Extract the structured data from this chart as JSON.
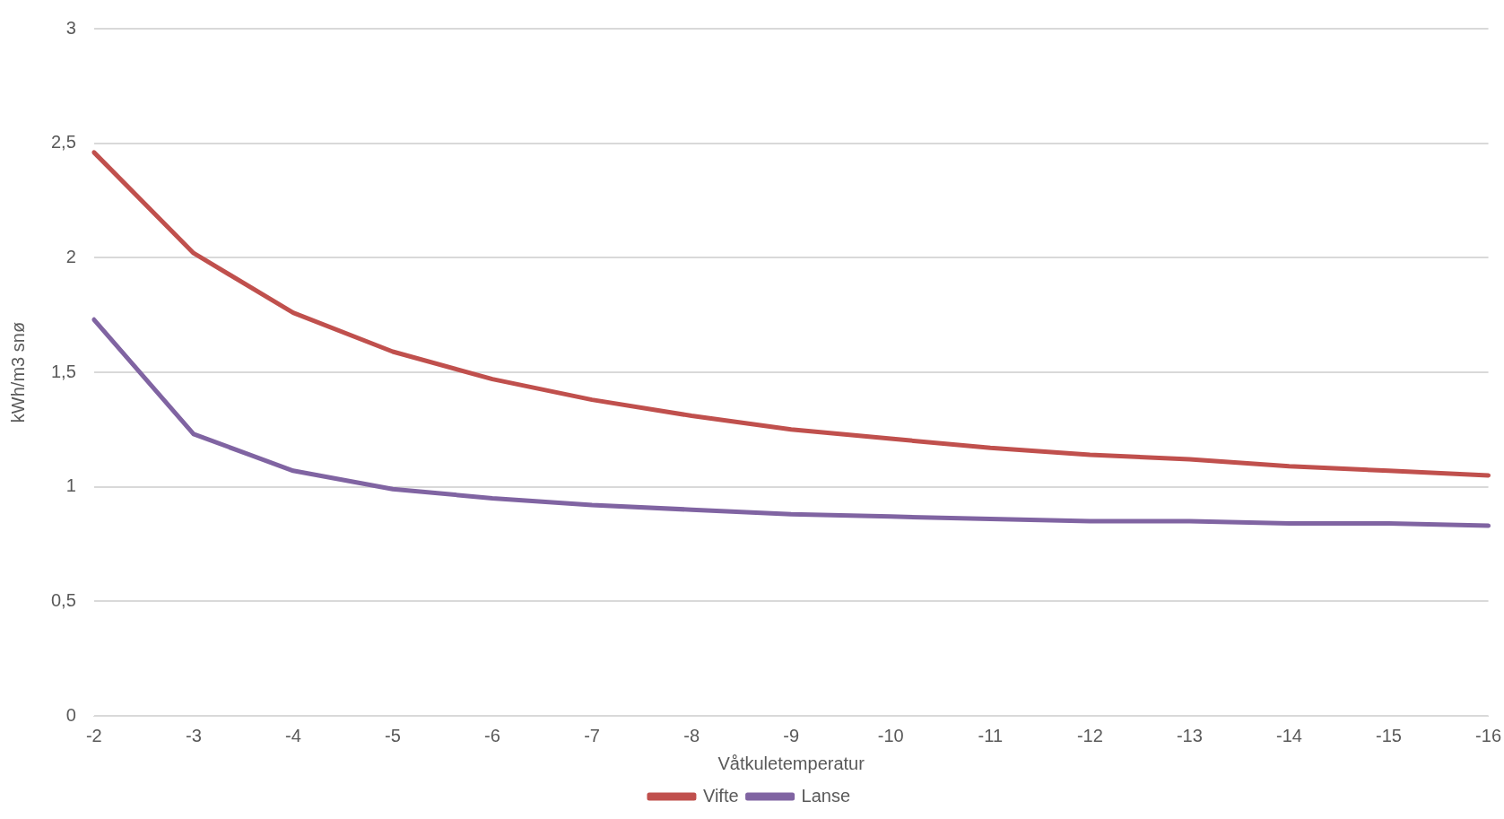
{
  "chart_data": {
    "type": "line",
    "xlabel": "Våtkuletemperatur",
    "ylabel": "kWh/m3 snø",
    "categories": [
      "-2",
      "-3",
      "-4",
      "-5",
      "-6",
      "-7",
      "-8",
      "-9",
      "-10",
      "-11",
      "-12",
      "-13",
      "-14",
      "-15",
      "-16"
    ],
    "series": [
      {
        "name": "Vifte",
        "color": "#c0504d",
        "values": [
          2.46,
          2.02,
          1.76,
          1.59,
          1.47,
          1.38,
          1.31,
          1.25,
          1.21,
          1.17,
          1.14,
          1.12,
          1.09,
          1.07,
          1.05
        ]
      },
      {
        "name": "Lanse",
        "color": "#8064a2",
        "values": [
          1.73,
          1.23,
          1.07,
          0.99,
          0.95,
          0.92,
          0.9,
          0.88,
          0.87,
          0.86,
          0.85,
          0.85,
          0.84,
          0.84,
          0.83
        ]
      }
    ],
    "ylim": [
      0,
      3
    ],
    "yticks": [
      0,
      {
        "value": 0.5,
        "label": "0,5"
      },
      1,
      {
        "value": 1.5,
        "label": "1,5"
      },
      2,
      {
        "value": 2.5,
        "label": "2,5"
      },
      3
    ],
    "grid": "y",
    "legend": "bottom",
    "marker": "none",
    "line_style": "solid"
  }
}
